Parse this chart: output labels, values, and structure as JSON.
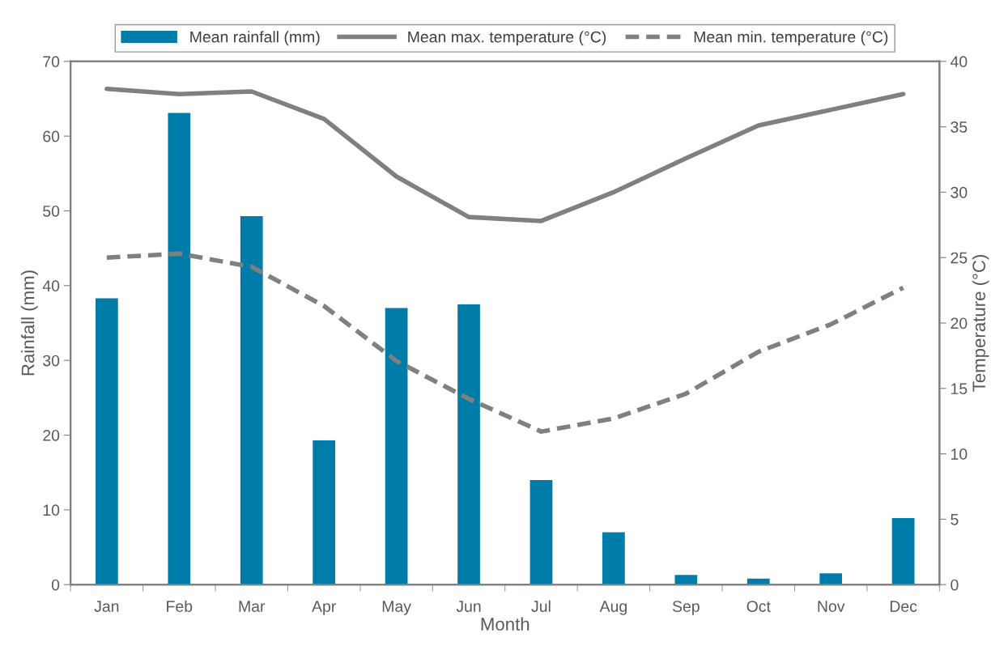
{
  "chart_data": {
    "type": "bar",
    "xlabel": "Month",
    "ylabel": "Rainfall (mm)",
    "y2label": "Temperature (°C)",
    "categories": [
      "Jan",
      "Feb",
      "Mar",
      "Apr",
      "May",
      "Jun",
      "Jul",
      "Aug",
      "Sep",
      "Oct",
      "Nov",
      "Dec"
    ],
    "series": [
      {
        "name": "Mean rainfall (mm)",
        "color": "#007ca9",
        "values": [
          38.3,
          63.1,
          49.3,
          19.3,
          37.0,
          37.5,
          14.0,
          7.0,
          1.3,
          0.8,
          1.5,
          8.9
        ]
      },
      {
        "name": "Mean max. temperature (°C)",
        "type": "line",
        "axis": "y2",
        "line_style": "solid",
        "color": "#808080",
        "values": [
          37.9,
          37.5,
          37.7,
          35.6,
          31.2,
          28.1,
          27.8,
          30.0,
          32.6,
          35.1,
          36.3,
          37.5
        ]
      },
      {
        "name": "Mean min. temperature (°C)",
        "type": "line",
        "axis": "y2",
        "line_style": "dashed",
        "color": "#808080",
        "values": [
          25.0,
          25.3,
          24.3,
          21.3,
          17.1,
          14.2,
          11.7,
          12.7,
          14.6,
          17.8,
          19.9,
          22.7
        ]
      }
    ],
    "ylim": [
      0,
      70
    ],
    "yticks": [
      0,
      10,
      20,
      30,
      40,
      50,
      60,
      70
    ],
    "y2lim": [
      0,
      40
    ],
    "y2ticks": [
      0,
      5,
      10,
      15,
      20,
      25,
      30,
      35,
      40
    ],
    "grid": false,
    "legend": "top"
  }
}
